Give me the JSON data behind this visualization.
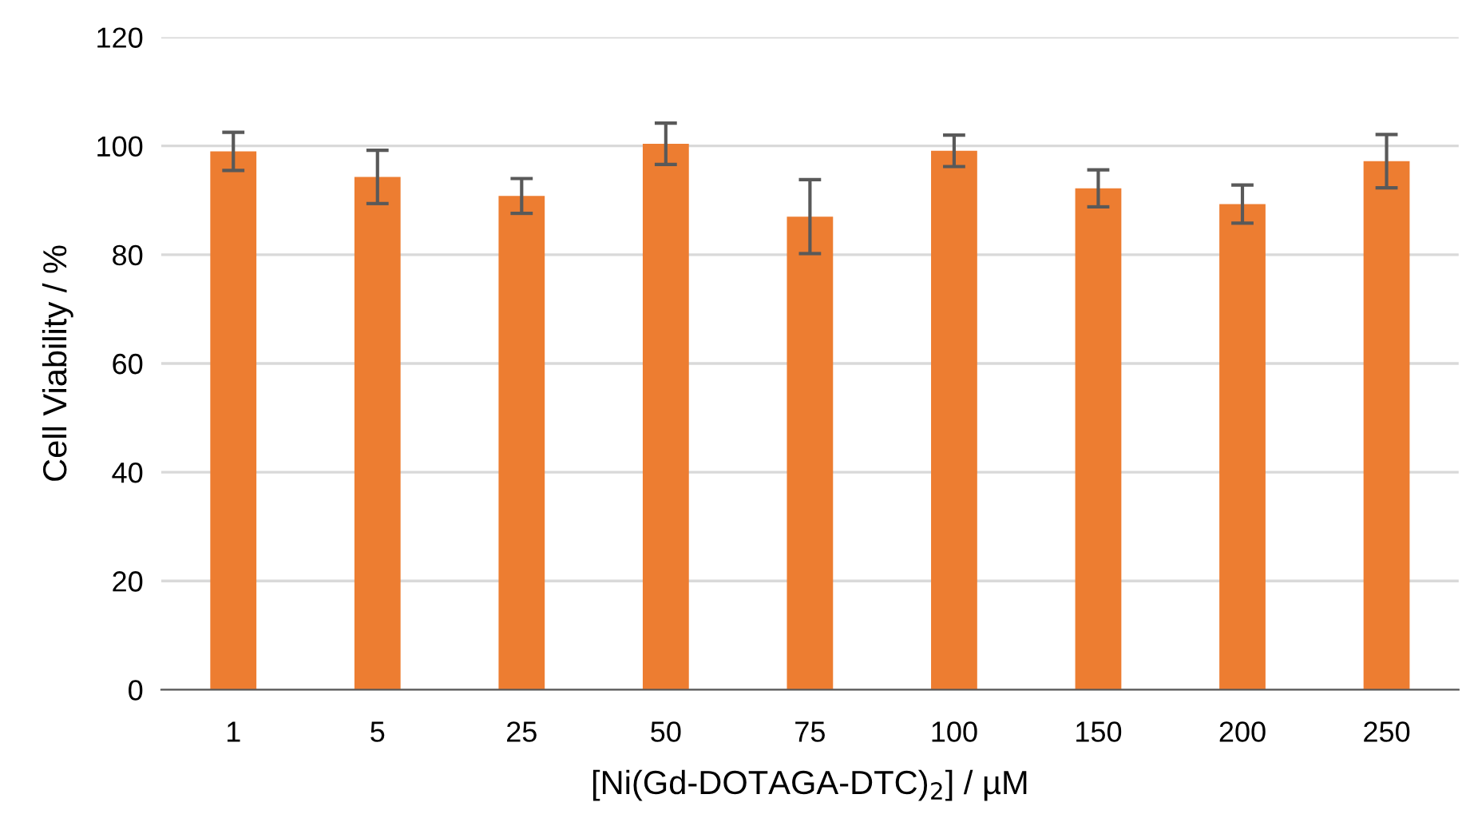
{
  "chart_data": {
    "type": "bar",
    "xlabel": "[Ni(Gd-DOTAGA-DTC)$_{2}$] / µM",
    "ylabel": "Cell Viability / %",
    "categories": [
      "1",
      "5",
      "25",
      "50",
      "75",
      "100",
      "150",
      "200",
      "250"
    ],
    "values": [
      99.0,
      94.3,
      90.8,
      100.4,
      87.0,
      99.1,
      92.2,
      89.3,
      97.2
    ],
    "errors": [
      3.5,
      4.9,
      3.2,
      3.8,
      6.8,
      2.9,
      3.4,
      3.5,
      4.9
    ],
    "color": "#ed7d31",
    "ylim": [
      0,
      120
    ],
    "yticks": [
      0,
      20,
      40,
      60,
      80,
      100,
      120
    ],
    "grid": "y"
  }
}
